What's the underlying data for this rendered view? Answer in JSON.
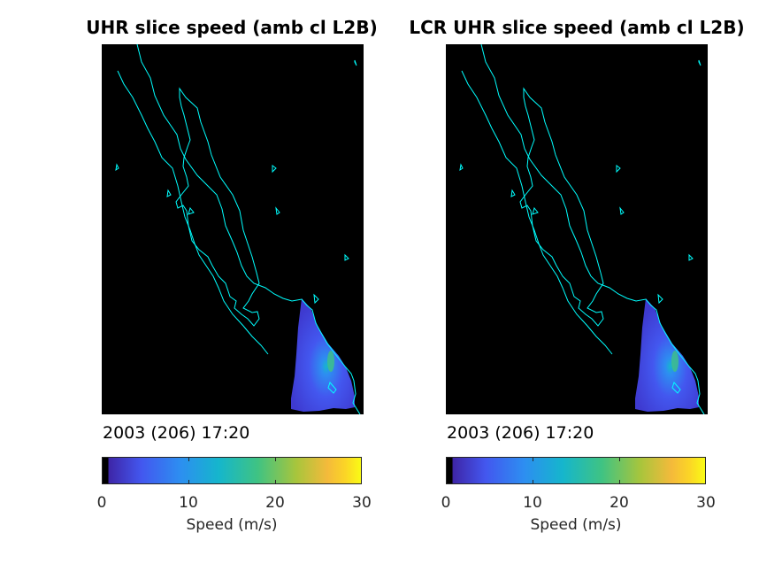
{
  "panels": [
    {
      "title": "UHR slice speed (amb cl L2B)",
      "timestamp": "2003 (206) 17:20",
      "colorbar": {
        "label": "Speed (m/s)",
        "ticks": [
          "0",
          "10",
          "20",
          "30"
        ],
        "min": 0,
        "max": 30
      }
    },
    {
      "title": "LCR UHR slice speed (amb cl L2B)",
      "timestamp": "2003 (206) 17:20",
      "colorbar": {
        "label": "Speed (m/s)",
        "ticks": [
          "0",
          "10",
          "20",
          "30"
        ],
        "min": 0,
        "max": 30
      }
    }
  ],
  "colors": {
    "background": "#000000",
    "coastline": "#00ffff",
    "colormap": [
      "#1a0b45",
      "#3e26a8",
      "#4357ef",
      "#2d8ef1",
      "#15b6cc",
      "#3fc383",
      "#a8c53c",
      "#f4ba3b",
      "#fbd526",
      "#f9fb15"
    ]
  }
}
